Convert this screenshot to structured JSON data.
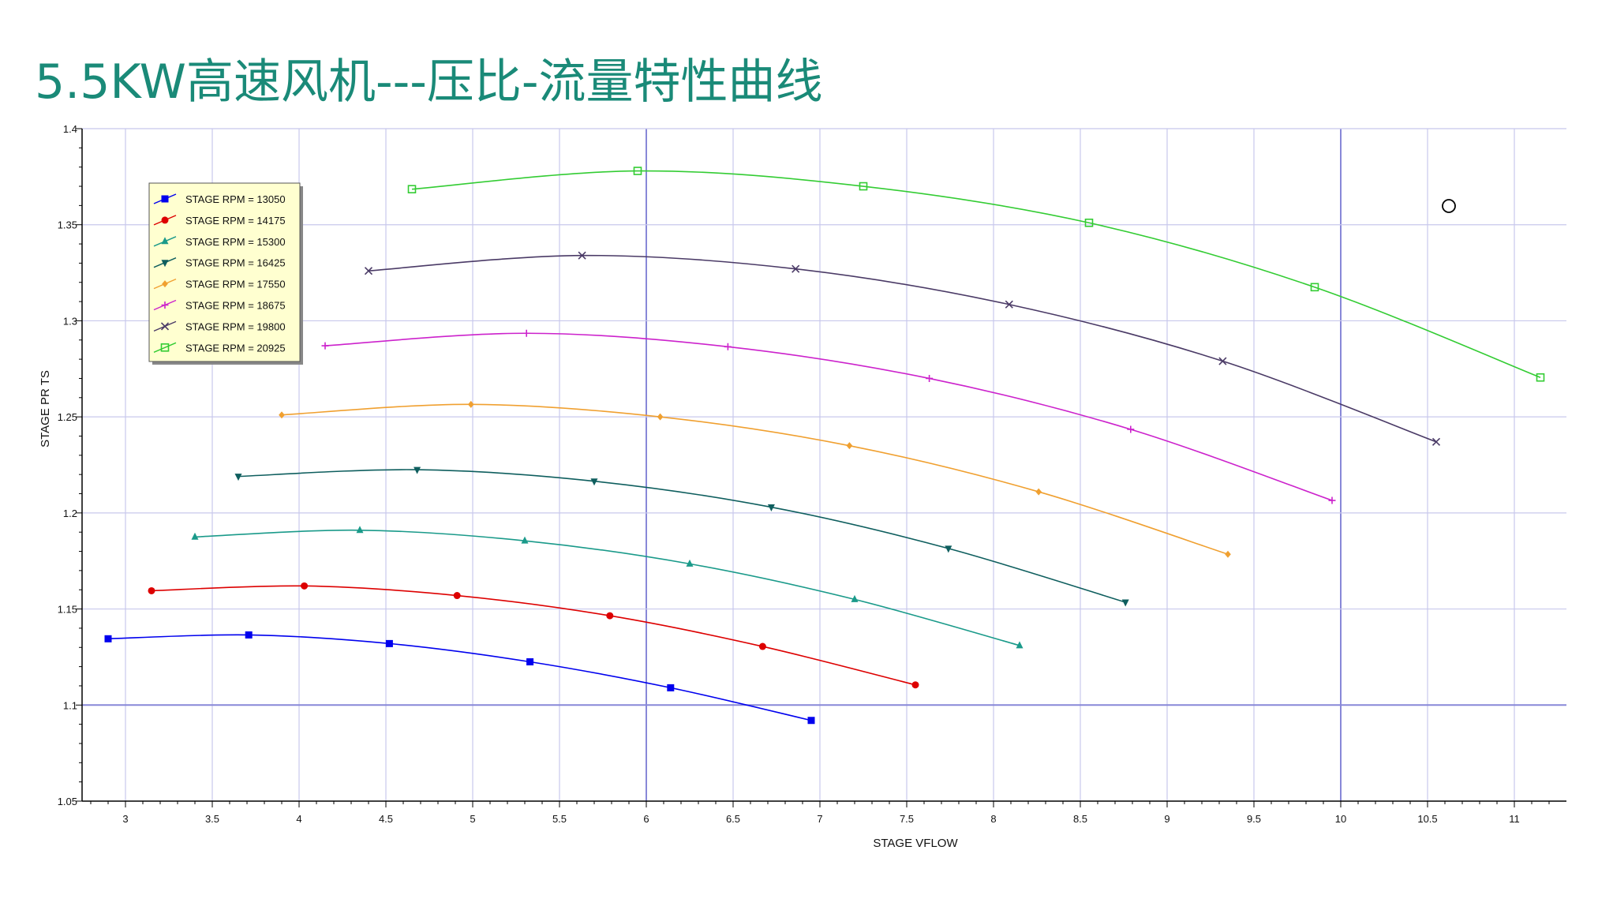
{
  "title": "5.5KW高速风机---压比-流量特性曲线",
  "chart_data": {
    "type": "line",
    "xlabel": "STAGE VFLOW",
    "ylabel": "STAGE PR TS",
    "xlim": [
      2.75,
      11.3
    ],
    "ylim": [
      1.05,
      1.4
    ],
    "x_ticks": [
      "3",
      "3.5",
      "4",
      "4.5",
      "5",
      "5.5",
      "6",
      "6.5",
      "7",
      "7.5",
      "8",
      "8.5",
      "9",
      "9.5",
      "10",
      "10.5",
      "11"
    ],
    "y_ticks": [
      "1.05",
      "1.1",
      "1.15",
      "1.2",
      "1.25",
      "1.3",
      "1.35",
      "1.4"
    ],
    "major_x_grid": [
      6,
      10
    ],
    "major_y_grid": [
      1.1
    ],
    "grid": true,
    "legend_position": "top-left",
    "series": [
      {
        "name": "STAGE RPM = 13050",
        "color": "#0000ee",
        "marker": "square",
        "x": [
          2.9,
          3.71,
          4.52,
          5.33,
          6.14,
          6.95
        ],
        "y": [
          1.1345,
          1.1365,
          1.132,
          1.1225,
          1.109,
          1.092
        ]
      },
      {
        "name": "STAGE RPM = 14175",
        "color": "#dd0000",
        "marker": "circle",
        "x": [
          3.15,
          4.03,
          4.91,
          5.79,
          6.67,
          7.55
        ],
        "y": [
          1.1595,
          1.162,
          1.157,
          1.1465,
          1.1305,
          1.1105
        ]
      },
      {
        "name": "STAGE RPM = 15300",
        "color": "#1a9a8a",
        "marker": "triangle-up",
        "x": [
          3.4,
          4.35,
          5.3,
          6.25,
          7.2,
          8.15
        ],
        "y": [
          1.1875,
          1.191,
          1.1855,
          1.1735,
          1.155,
          1.131
        ]
      },
      {
        "name": "STAGE RPM = 16425",
        "color": "#0e5e5e",
        "marker": "triangle-down",
        "x": [
          3.65,
          4.68,
          5.7,
          6.72,
          7.74,
          8.76
        ],
        "y": [
          1.219,
          1.2225,
          1.2165,
          1.203,
          1.1815,
          1.1535
        ]
      },
      {
        "name": "STAGE RPM = 17550",
        "color": "#f0a030",
        "marker": "diamond",
        "x": [
          3.9,
          4.99,
          6.08,
          7.17,
          8.26,
          9.35
        ],
        "y": [
          1.251,
          1.2565,
          1.25,
          1.235,
          1.211,
          1.1785
        ]
      },
      {
        "name": "STAGE RPM = 18675",
        "color": "#cc22cc",
        "marker": "plus",
        "x": [
          4.15,
          5.31,
          6.47,
          7.63,
          8.79,
          9.95
        ],
        "y": [
          1.287,
          1.2935,
          1.2865,
          1.27,
          1.2435,
          1.2065
        ]
      },
      {
        "name": "STAGE RPM = 19800",
        "color": "#4a3a66",
        "marker": "x",
        "x": [
          4.4,
          5.63,
          6.86,
          8.09,
          9.32,
          10.55
        ],
        "y": [
          1.326,
          1.334,
          1.327,
          1.3085,
          1.279,
          1.237
        ]
      },
      {
        "name": "STAGE RPM = 20925",
        "color": "#33cc33",
        "marker": "open-square",
        "x": [
          4.65,
          5.95,
          7.25,
          8.55,
          9.85,
          11.15
        ],
        "y": [
          1.3685,
          1.378,
          1.37,
          1.351,
          1.3175,
          1.2705
        ]
      }
    ]
  }
}
